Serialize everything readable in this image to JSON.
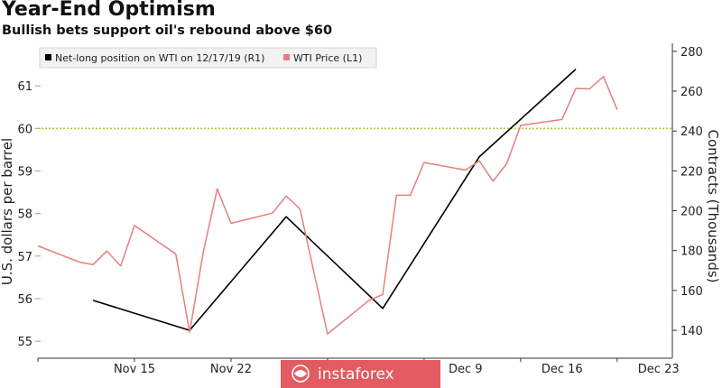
{
  "chart_data": {
    "type": "line",
    "title": "Year-End Optimism",
    "subtitle": "Bullish bets support oil's rebound above $60",
    "ylabel_left": "U.S. dollars per barrel",
    "ylabel_right": "Contracts (Thousands)",
    "x_ticks": [
      "Nov 15",
      "Nov 22",
      "Dec 9",
      "Dec 16",
      "Dec 23"
    ],
    "ylim_left": [
      54.6,
      62.0
    ],
    "yticks_left": [
      55,
      56,
      57,
      58,
      59,
      60,
      61
    ],
    "ylim_right": [
      126,
      284
    ],
    "yticks_right": [
      140,
      160,
      180,
      200,
      220,
      240,
      260,
      280
    ],
    "reference_line": {
      "value": 60,
      "axis": "left",
      "color": "#a6d12c",
      "style": "dotted"
    },
    "legend_position": "top-left",
    "series": [
      {
        "name": "Net-long position on WTI on 12/17/19 (R1)",
        "axis": "right",
        "color": "#000000",
        "x": [
          "Nov 12",
          "Nov 19",
          "Nov 26",
          "Dec 3",
          "Dec 10",
          "Dec 17"
        ],
        "values": [
          155,
          140,
          197,
          151,
          227,
          271
        ]
      },
      {
        "name": "WTI Price (L1)",
        "axis": "left",
        "color": "#e57f7f",
        "x": [
          "Nov 8",
          "Nov 11",
          "Nov 12",
          "Nov 13",
          "Nov 14",
          "Nov 15",
          "Nov 18",
          "Nov 19",
          "Nov 20",
          "Nov 21",
          "Nov 22",
          "Nov 25",
          "Nov 26",
          "Nov 27",
          "Nov 29",
          "Dec 2",
          "Dec 3",
          "Dec 4",
          "Dec 5",
          "Dec 6",
          "Dec 9",
          "Dec 10",
          "Dec 11",
          "Dec 12",
          "Dec 13",
          "Dec 16",
          "Dec 17",
          "Dec 18",
          "Dec 19",
          "Dec 20",
          "Dec 23"
        ],
        "values": [
          57.24,
          56.86,
          56.8,
          57.12,
          56.77,
          57.72,
          57.05,
          55.21,
          57.11,
          58.58,
          57.77,
          58.01,
          58.41,
          58.11,
          55.17,
          55.96,
          56.1,
          58.43,
          58.43,
          59.2,
          59.02,
          59.24,
          58.76,
          59.18,
          60.07,
          60.21,
          60.94,
          60.93,
          61.22,
          60.44,
          null
        ]
      }
    ]
  },
  "watermark": "instaforex",
  "colors": {
    "price_line": "#e57f7f",
    "position_line": "#000000",
    "reference_line": "#a6d12c",
    "watermark_bg": "#e35a60"
  }
}
